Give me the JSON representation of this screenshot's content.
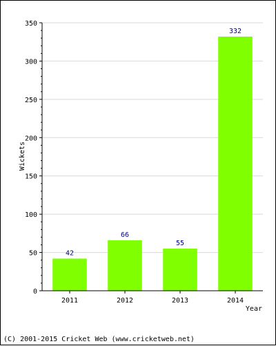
{
  "chart_data": {
    "type": "bar",
    "title": "",
    "xlabel": "Year",
    "ylabel": "Wickets",
    "categories": [
      "2011",
      "2012",
      "2013",
      "2014"
    ],
    "values": [
      42,
      66,
      55,
      332
    ],
    "data_labels": [
      "42",
      "66",
      "55",
      "332"
    ],
    "ylim": [
      0,
      350
    ],
    "y_ticks": [
      0,
      50,
      100,
      150,
      200,
      250,
      300,
      350
    ],
    "y_tick_labels": [
      "0",
      "50",
      "100",
      "150",
      "200",
      "250",
      "300",
      "350"
    ],
    "grid": true,
    "legend": "none",
    "bar_color": "#80ff00",
    "label_color": "#000080"
  },
  "footer": {
    "credit": "(C) 2001-2015 Cricket Web (www.cricketweb.net)"
  }
}
